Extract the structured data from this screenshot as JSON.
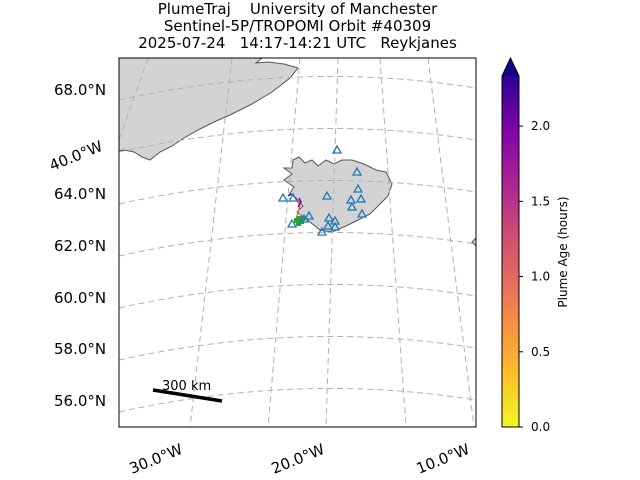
{
  "header": {
    "line1": "PlumeTraj    University of Manchester",
    "line2": "Sentinel-5P/TROPOMI Orbit #40309",
    "line3": "2025-07-24   14:17-14:21 UTC   Reykjanes"
  },
  "map": {
    "lat_labels": [
      "68.0°N",
      "66.0°N",
      "64.0°N",
      "62.0°N",
      "60.0°N",
      "58.0°N",
      "56.0°N"
    ],
    "lon_labels_bottom": [
      "30.0°W",
      "20.0°W",
      "10.0°W"
    ],
    "lon_label_left": "40.0°W",
    "scale_bar_label": "300 km",
    "land_color": "#d3d3d3",
    "grid_color": "#b0b0b0"
  },
  "colorbar": {
    "label": "Plume Age (hours)",
    "ticks": [
      "0.0",
      "0.5",
      "1.0",
      "1.5",
      "2.0"
    ],
    "tick_values": [
      0.0,
      0.5,
      1.0,
      1.5,
      2.0
    ],
    "vmin": 0.0,
    "vmax": 2.333,
    "colormap": "plasma_r",
    "extend": "max"
  },
  "markers": {
    "station_color": "#1f77b4",
    "vent_color": "#2ca02c"
  }
}
